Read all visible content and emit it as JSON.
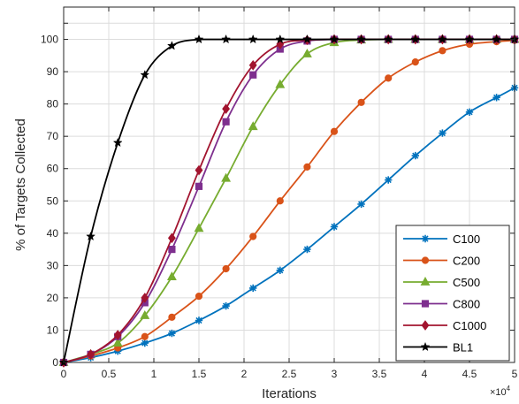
{
  "chart_data": {
    "type": "line",
    "xlabel": "Iterations",
    "ylabel": "% of Targets Collected",
    "x_exponent_label": "×10",
    "x_exponent_power": "4",
    "xlim": [
      0,
      5
    ],
    "ylim": [
      0,
      110
    ],
    "xticks": [
      "0",
      "0.5",
      "1",
      "1.5",
      "2",
      "2.5",
      "3",
      "3.5",
      "4",
      "4.5",
      "5"
    ],
    "yticks": [
      "0",
      "10",
      "20",
      "30",
      "40",
      "50",
      "60",
      "70",
      "80",
      "90",
      "100"
    ],
    "grid": true,
    "legend_position": "bottom-right",
    "series": [
      {
        "name": "C100",
        "color": "#0072BD",
        "marker": "asterisk",
        "x": [
          0,
          0.3,
          0.6,
          0.9,
          1.2,
          1.5,
          1.8,
          2.1,
          2.4,
          2.7,
          3.0,
          3.3,
          3.6,
          3.9,
          4.2,
          4.5,
          4.8,
          5.0
        ],
        "y": [
          0,
          1.5,
          3.5,
          6,
          9,
          13,
          17.5,
          23,
          28.5,
          35,
          42,
          49,
          56.5,
          64,
          71,
          77.5,
          82,
          85
        ]
      },
      {
        "name": "C200",
        "color": "#D95319",
        "marker": "circle",
        "x": [
          0,
          0.3,
          0.6,
          0.9,
          1.2,
          1.5,
          1.8,
          2.1,
          2.4,
          2.7,
          3.0,
          3.3,
          3.6,
          3.9,
          4.2,
          4.5,
          4.8,
          5.0
        ],
        "y": [
          0,
          2,
          4.5,
          8,
          14,
          20.5,
          29,
          39,
          50,
          60.5,
          71.5,
          80.5,
          88,
          93,
          96.5,
          98.5,
          99.3,
          99.7
        ]
      },
      {
        "name": "C500",
        "color": "#77AC30",
        "marker": "triangle",
        "x": [
          0,
          0.3,
          0.6,
          0.9,
          1.2,
          1.5,
          1.8,
          2.1,
          2.4,
          2.7,
          3.0,
          3.3,
          3.6,
          3.9,
          4.2,
          4.5,
          4.8,
          5.0
        ],
        "y": [
          0,
          2.5,
          6,
          14.5,
          26.5,
          41.5,
          57,
          73,
          86,
          95.5,
          99,
          99.8,
          100,
          100,
          100,
          100,
          100,
          100
        ]
      },
      {
        "name": "C800",
        "color": "#7E2F8E",
        "marker": "square",
        "x": [
          0,
          0.3,
          0.6,
          0.9,
          1.2,
          1.5,
          1.8,
          2.1,
          2.4,
          2.7,
          3.0,
          3.3,
          3.6,
          3.9,
          4.2,
          4.5,
          4.8,
          5.0
        ],
        "y": [
          0,
          2.5,
          8,
          18.5,
          35,
          54.5,
          74.5,
          89,
          97,
          99.5,
          100,
          100,
          100,
          100,
          100,
          100,
          100,
          100
        ]
      },
      {
        "name": "C1000",
        "color": "#A2142F",
        "marker": "diamond",
        "x": [
          0,
          0.3,
          0.6,
          0.9,
          1.2,
          1.5,
          1.8,
          2.1,
          2.4,
          2.7,
          3.0,
          3.3,
          3.6,
          3.9,
          4.2,
          4.5,
          4.8,
          5.0
        ],
        "y": [
          0,
          2.5,
          8.5,
          20,
          38.5,
          59.5,
          78.5,
          92,
          98.5,
          99.8,
          100,
          100,
          100,
          100,
          100,
          100,
          100,
          100
        ]
      },
      {
        "name": "BL1",
        "color": "#000000",
        "marker": "star",
        "x": [
          0,
          0.3,
          0.6,
          0.9,
          1.2,
          1.5,
          1.8,
          2.1,
          2.4,
          2.7,
          3.0,
          3.3,
          3.6,
          3.9,
          4.2,
          4.5,
          4.8,
          5.0
        ],
        "y": [
          0,
          39,
          68,
          89,
          98,
          100,
          100,
          100,
          100,
          100,
          100,
          100,
          100,
          100,
          100,
          100,
          100,
          100
        ]
      }
    ]
  }
}
